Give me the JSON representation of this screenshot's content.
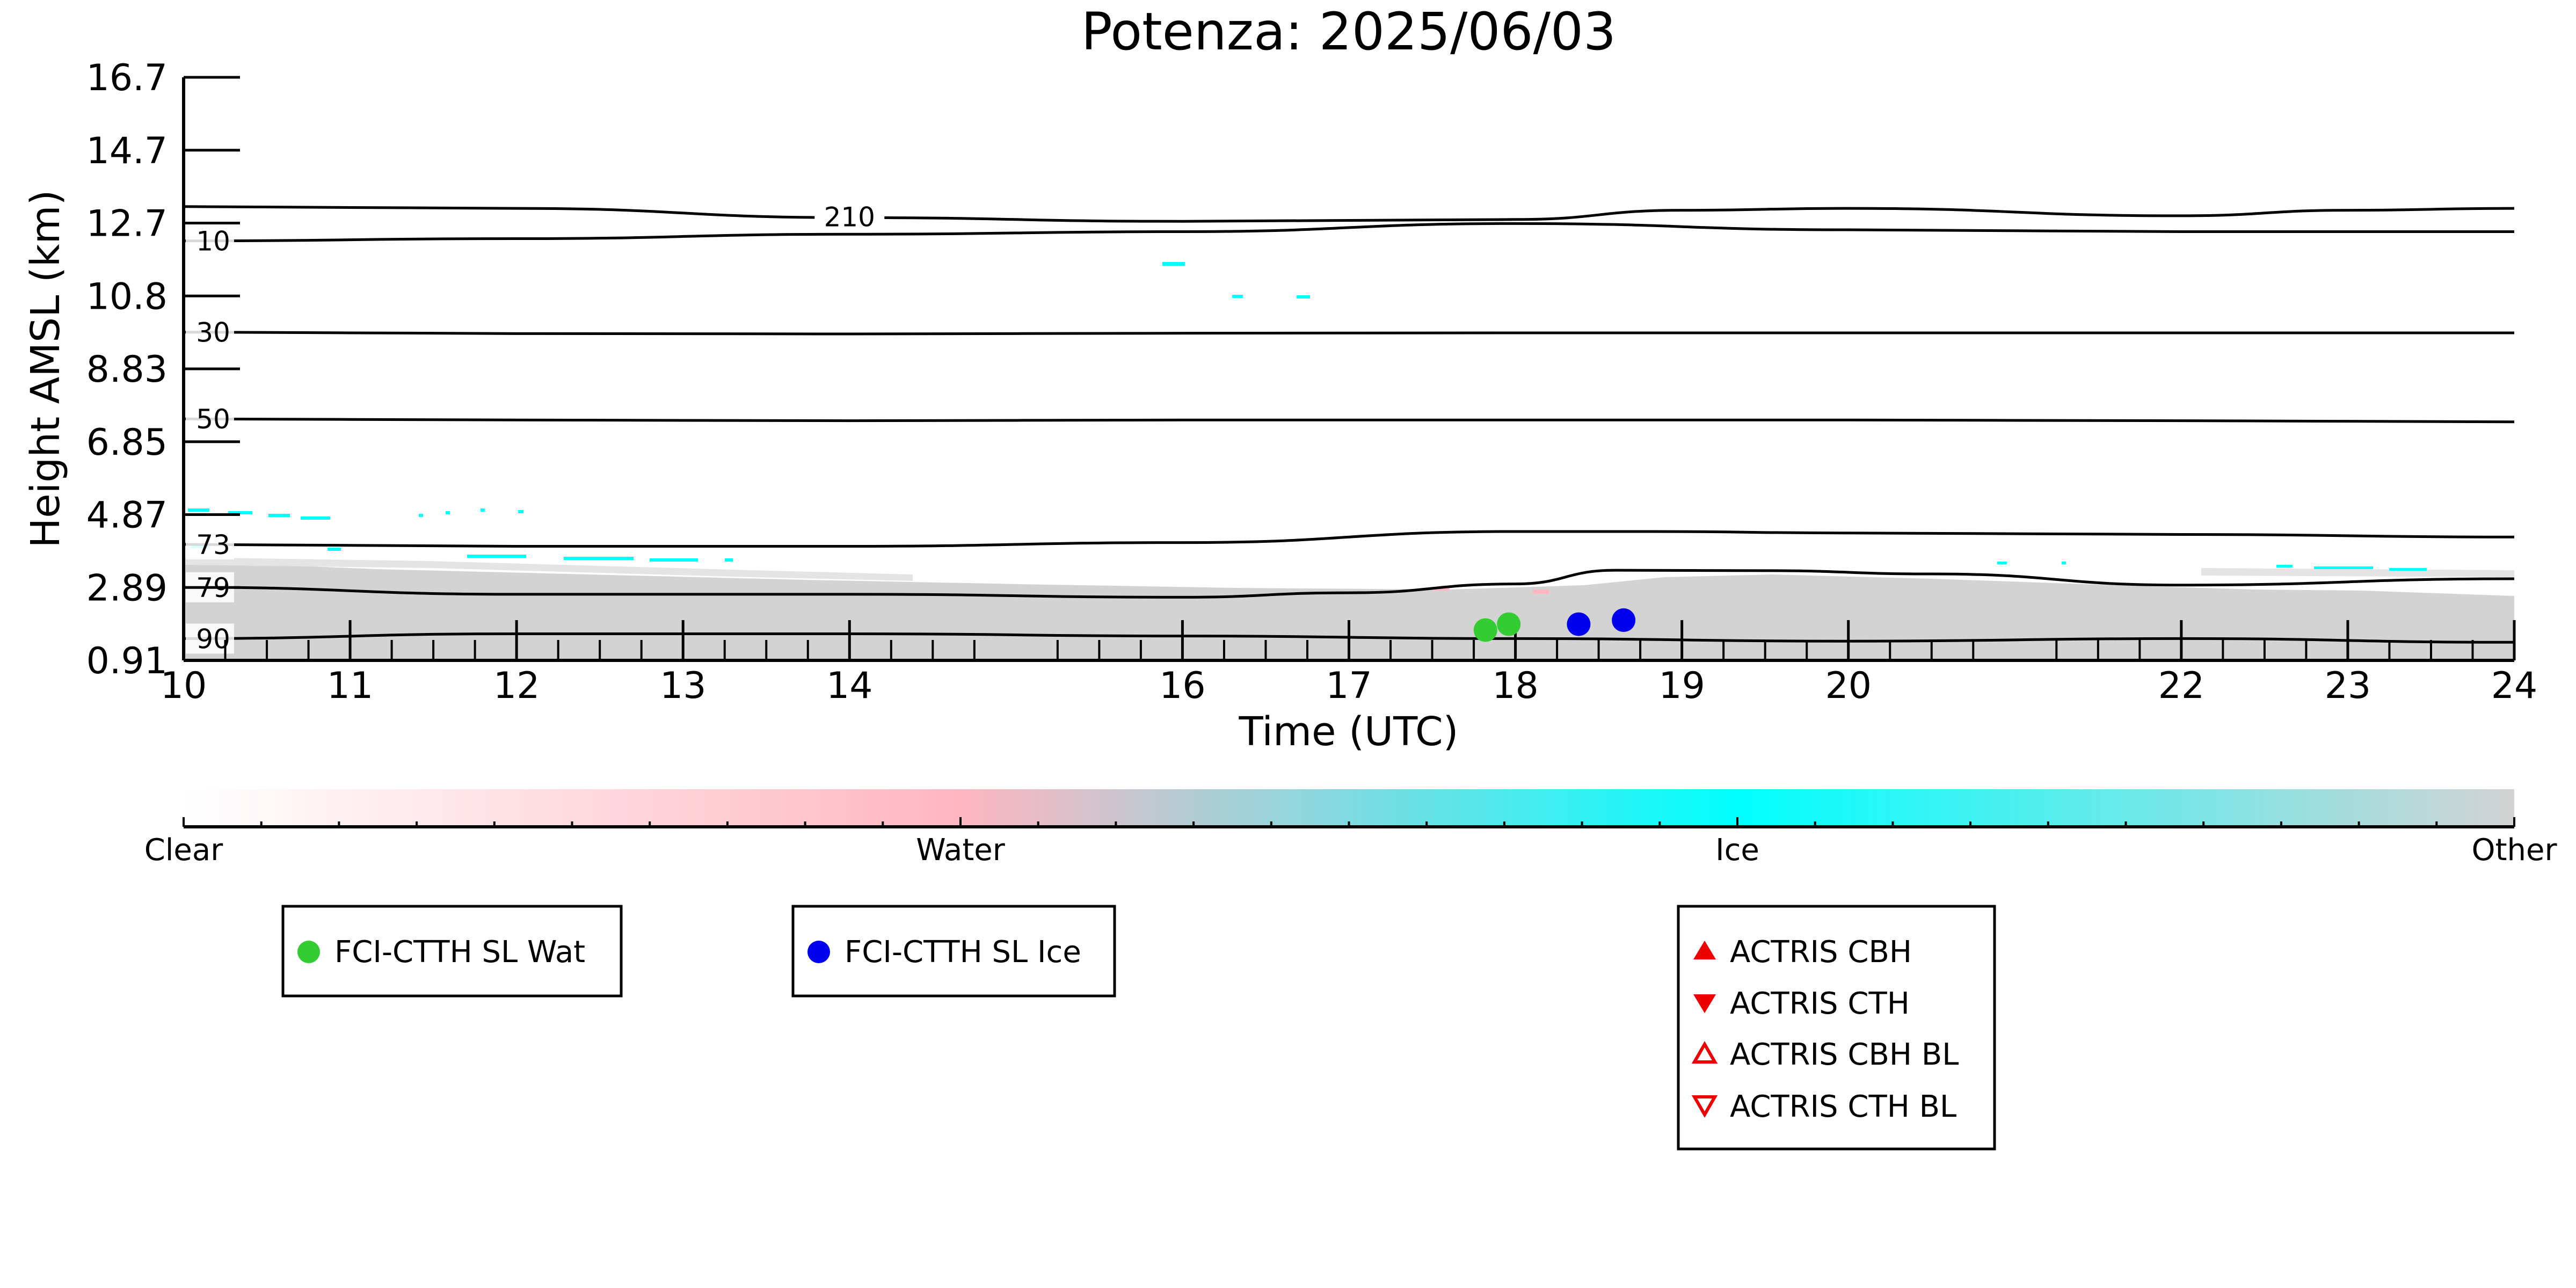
{
  "chart_data": {
    "type": "heatmap",
    "title": "Potenza: 2025/06/03",
    "xlabel": "Time (UTC)",
    "ylabel": "Height AMSL (km)",
    "x_ticks": [
      {
        "value": 10,
        "label": "10"
      },
      {
        "value": 11,
        "label": "11"
      },
      {
        "value": 12,
        "label": "12"
      },
      {
        "value": 13,
        "label": "13"
      },
      {
        "value": 14,
        "label": "14"
      },
      {
        "value": 16,
        "label": "16"
      },
      {
        "value": 17,
        "label": "17"
      },
      {
        "value": 18,
        "label": "18"
      },
      {
        "value": 19,
        "label": "19"
      },
      {
        "value": 20,
        "label": "20"
      },
      {
        "value": 22,
        "label": "22"
      },
      {
        "value": 23,
        "label": "23"
      },
      {
        "value": 24,
        "label": "24"
      }
    ],
    "y_ticks": [
      "0.91",
      "2.89",
      "4.87",
      "6.85",
      "8.83",
      "10.8",
      "12.7",
      "14.7",
      "16.7"
    ],
    "xlim": [
      10,
      24
    ],
    "ylim": [
      0.91,
      16.7
    ],
    "contours": [
      {
        "label": "90",
        "x": [
          10,
          12,
          14,
          16,
          18,
          20,
          22,
          24
        ],
        "y": [
          1.5,
          1.63,
          1.63,
          1.57,
          1.5,
          1.43,
          1.5,
          1.4
        ]
      },
      {
        "label": "79",
        "x": [
          10,
          12,
          14,
          16,
          17,
          18,
          18.6,
          19.5,
          20.5,
          22,
          24
        ],
        "y": [
          2.89,
          2.7,
          2.7,
          2.62,
          2.74,
          2.98,
          3.35,
          3.34,
          3.25,
          2.95,
          3.12
        ]
      },
      {
        "label": "73",
        "x": [
          10,
          12,
          14,
          16,
          18,
          18.8,
          20,
          22,
          24
        ],
        "y": [
          4.05,
          4.0,
          4.0,
          4.1,
          4.4,
          4.4,
          4.36,
          4.32,
          4.25
        ]
      },
      {
        "label": "50",
        "x": [
          10,
          12,
          14,
          16,
          18,
          20,
          22,
          24
        ],
        "y": [
          7.45,
          7.42,
          7.4,
          7.42,
          7.42,
          7.42,
          7.4,
          7.37
        ]
      },
      {
        "label": "30",
        "x": [
          10,
          12,
          14,
          16,
          18,
          20,
          22,
          24
        ],
        "y": [
          9.8,
          9.76,
          9.75,
          9.77,
          9.78,
          9.78,
          9.78,
          9.78
        ]
      },
      {
        "label": "10",
        "x": [
          10,
          12,
          14,
          16,
          18,
          20,
          22,
          24
        ],
        "y": [
          12.27,
          12.33,
          12.45,
          12.52,
          12.74,
          12.57,
          12.52,
          12.52
        ]
      },
      {
        "label": "210",
        "x": [
          10,
          12,
          14,
          16,
          18,
          19,
          20,
          22,
          23,
          24
        ],
        "y": [
          13.2,
          13.15,
          12.9,
          12.8,
          12.85,
          13.1,
          13.15,
          12.95,
          13.1,
          13.15
        ]
      }
    ],
    "fci_ctth_sl_wat": {
      "x": [
        17.82,
        17.96
      ],
      "y": [
        1.73,
        1.89
      ]
    },
    "fci_ctth_sl_ice": {
      "x": [
        18.38,
        18.65
      ],
      "y": [
        1.89,
        2.0
      ]
    },
    "colorbar": {
      "labels": [
        "Clear",
        "Water",
        "Ice",
        "Other"
      ],
      "colors": [
        "#ffffff",
        "#ffb6c1",
        "#00ffff",
        "#d3d3d3"
      ]
    },
    "legend": [
      {
        "label": "FCI-CTTH SL Wat",
        "marker": "circle",
        "color": "#33cc33"
      },
      {
        "label": "FCI-CTTH SL Ice",
        "marker": "circle",
        "color": "#0000ee"
      },
      {
        "label": "ACTRIS CBH",
        "marker": "triangle-up-filled",
        "color": "#ee0000"
      },
      {
        "label": "ACTRIS CTH",
        "marker": "triangle-down-filled",
        "color": "#ee0000"
      },
      {
        "label": "ACTRIS CBH BL",
        "marker": "triangle-up-open",
        "color": "#ee0000"
      },
      {
        "label": "ACTRIS CTH BL",
        "marker": "triangle-down-open",
        "color": "#ee0000"
      }
    ]
  }
}
